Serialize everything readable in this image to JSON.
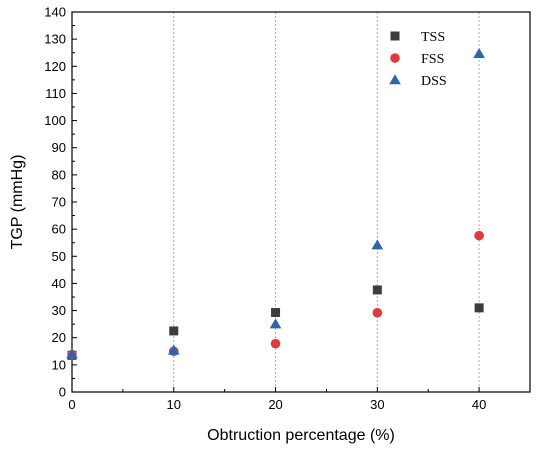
{
  "chart_data": {
    "type": "scatter",
    "title": "",
    "xlabel": "Obtruction percentage (%)",
    "ylabel": "TGP (mmHg)",
    "xlim": [
      0,
      45
    ],
    "ylim": [
      0,
      140
    ],
    "xticks": [
      0,
      10,
      20,
      30,
      40
    ],
    "yticks": [
      0,
      10,
      20,
      30,
      40,
      50,
      60,
      70,
      80,
      90,
      100,
      110,
      120,
      130,
      140
    ],
    "vertical_grid": true,
    "horizontal_grid": false,
    "legend_position": "top-right",
    "series": [
      {
        "name": "TSS",
        "marker": "square",
        "color": "#3d3d3d",
        "x": [
          0,
          10,
          20,
          30,
          40
        ],
        "y": [
          13.5,
          22.5,
          29.3,
          37.6,
          31.0
        ]
      },
      {
        "name": "FSS",
        "marker": "circle",
        "color": "#e0393e",
        "x": [
          0,
          10,
          20,
          30,
          40
        ],
        "y": [
          13.8,
          15.0,
          17.8,
          29.2,
          57.6
        ]
      },
      {
        "name": "DSS",
        "marker": "triangle",
        "color": "#2f63ad",
        "x": [
          0,
          10,
          20,
          30,
          40
        ],
        "y": [
          13.9,
          15.3,
          25.0,
          54.1,
          124.6
        ]
      }
    ]
  }
}
